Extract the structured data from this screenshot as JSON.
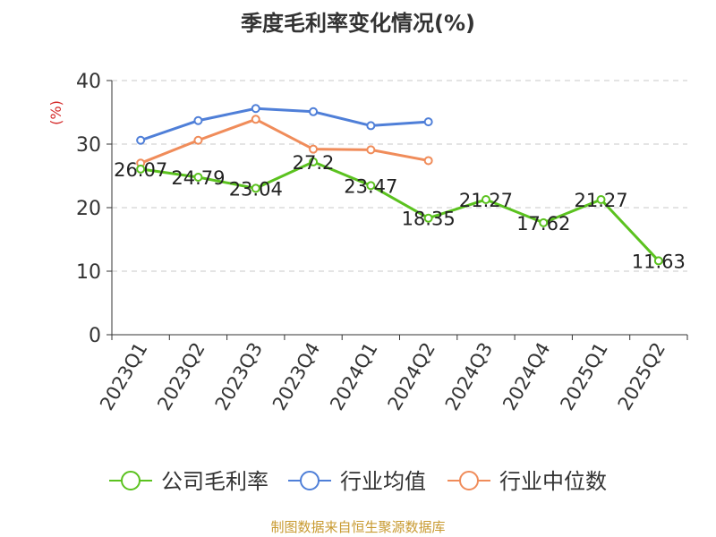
{
  "chart_data": {
    "type": "line",
    "title": "季度毛利率变化情况(%)",
    "ylabel": "(%)",
    "xlabel": "",
    "categories": [
      "2023Q1",
      "2023Q2",
      "2023Q3",
      "2023Q4",
      "2024Q1",
      "2024Q2",
      "2024Q3",
      "2024Q4",
      "2025Q1",
      "2025Q2"
    ],
    "ylim": [
      0,
      40
    ],
    "yticks": [
      0,
      10,
      20,
      30,
      40
    ],
    "grid": true,
    "legend_position": "bottom",
    "series": [
      {
        "name": "公司毛利率",
        "color": "#5bc21f",
        "values": [
          26.07,
          24.79,
          23.04,
          27.2,
          23.47,
          18.35,
          21.27,
          17.62,
          21.27,
          11.63
        ],
        "data_labels": [
          "26.07",
          "24.79",
          "23.04",
          "27.2",
          "23.47",
          "18.35",
          "21.27",
          "17.62",
          "21.27",
          "11.63"
        ]
      },
      {
        "name": "行业均值",
        "color": "#4f7fd8",
        "values": [
          30.6,
          33.7,
          35.6,
          35.1,
          32.9,
          33.5,
          null,
          null,
          null,
          null
        ]
      },
      {
        "name": "行业中位数",
        "color": "#f08c5a",
        "values": [
          27.0,
          30.6,
          33.9,
          29.2,
          29.1,
          27.4,
          null,
          null,
          null,
          null
        ]
      }
    ]
  },
  "footer": {
    "source": "制图数据来自恒生聚源数据库"
  }
}
